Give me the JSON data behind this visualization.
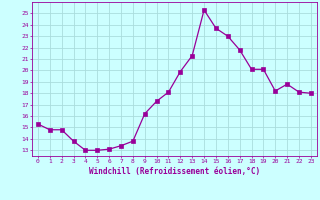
{
  "x": [
    0,
    1,
    2,
    3,
    4,
    5,
    6,
    7,
    8,
    9,
    10,
    11,
    12,
    13,
    14,
    15,
    16,
    17,
    18,
    19,
    20,
    21,
    22,
    23
  ],
  "y": [
    15.3,
    14.8,
    14.8,
    13.8,
    13.0,
    13.0,
    13.1,
    13.4,
    13.8,
    16.2,
    17.3,
    18.1,
    19.9,
    21.3,
    25.3,
    23.7,
    23.0,
    21.8,
    20.1,
    20.1,
    18.2,
    18.8,
    18.1,
    18.0
  ],
  "line_color": "#990099",
  "marker": "s",
  "marker_size": 2.2,
  "bg_color": "#ccffff",
  "grid_color": "#aadddd",
  "xlabel": "Windchill (Refroidissement éolien,°C)",
  "xlabel_color": "#990099",
  "tick_color": "#990099",
  "ylim_min": 12.5,
  "ylim_max": 26.0,
  "yticks": [
    13,
    14,
    15,
    16,
    17,
    18,
    19,
    20,
    21,
    22,
    23,
    24,
    25
  ],
  "xlim_min": -0.5,
  "xlim_max": 23.5
}
